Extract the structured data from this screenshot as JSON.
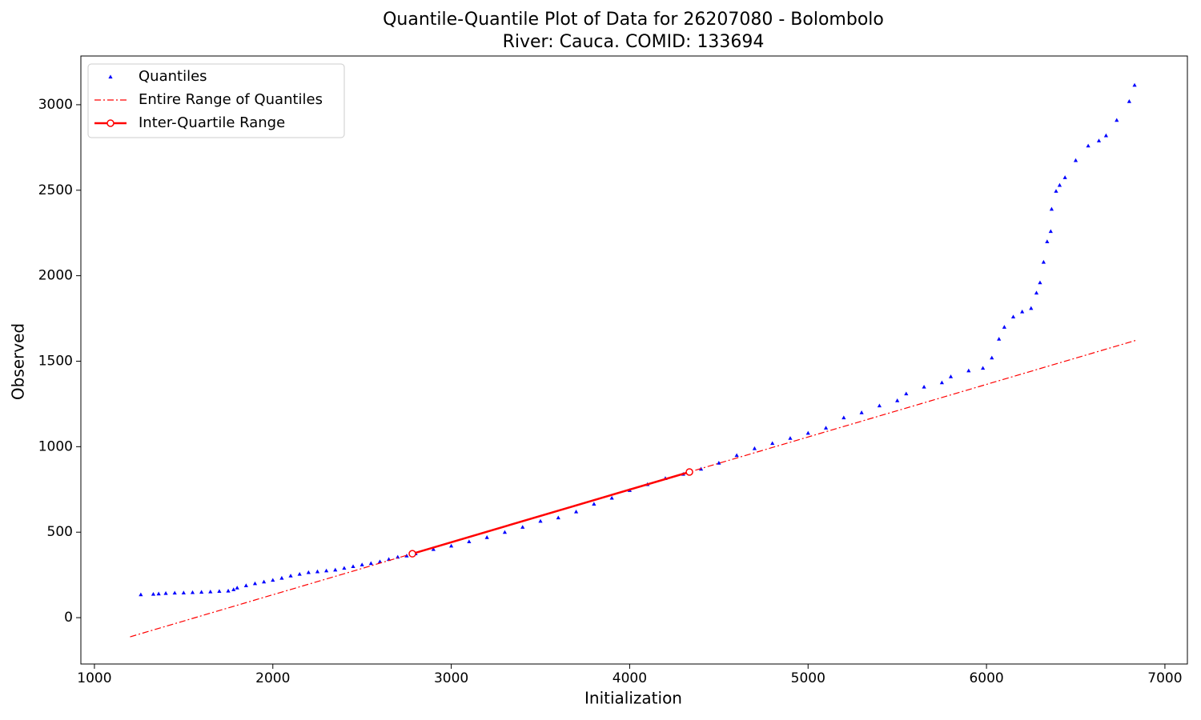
{
  "chart_data": {
    "type": "scatter",
    "title": "Quantile-Quantile Plot of Data for 26207080 - Bolombolo",
    "subtitle": "River: Cauca. COMID: 133694",
    "x_label": "Initialization",
    "y_label": "Observed",
    "xlim": [
      924,
      7126
    ],
    "ylim": [
      -271,
      3285
    ],
    "xticks": [
      1000,
      2000,
      3000,
      4000,
      5000,
      6000,
      7000
    ],
    "yticks": [
      0,
      500,
      1000,
      1500,
      2000,
      2500,
      3000
    ],
    "grid": false,
    "legend": "upper left",
    "series": [
      {
        "name": "Quantiles",
        "color": "#0000ff",
        "style": "marker",
        "x": [
          1260,
          1330,
          1360,
          1400,
          1450,
          1500,
          1550,
          1600,
          1650,
          1700,
          1750,
          1780,
          1800,
          1850,
          1900,
          1950,
          2000,
          2050,
          2100,
          2150,
          2200,
          2250,
          2300,
          2350,
          2400,
          2450,
          2500,
          2550,
          2600,
          2650,
          2700,
          2750,
          2800,
          2900,
          3000,
          3100,
          3200,
          3300,
          3400,
          3500,
          3600,
          3700,
          3800,
          3900,
          4000,
          4100,
          4200,
          4300,
          4400,
          4500,
          4600,
          4700,
          4800,
          4900,
          5000,
          5100,
          5200,
          5300,
          5400,
          5500,
          5550,
          5650,
          5750,
          5800,
          5900,
          5980,
          6030,
          6070,
          6100,
          6150,
          6200,
          6250,
          6280,
          6300,
          6320,
          6340,
          6360,
          6365,
          6390,
          6410,
          6440,
          6500,
          6570,
          6630,
          6670,
          6730,
          6800,
          6830
        ],
        "values": [
          135,
          138,
          140,
          143,
          145,
          146,
          148,
          150,
          152,
          155,
          157,
          165,
          175,
          188,
          200,
          210,
          220,
          232,
          245,
          255,
          265,
          270,
          275,
          280,
          290,
          300,
          310,
          318,
          328,
          342,
          355,
          362,
          375,
          400,
          420,
          445,
          470,
          500,
          530,
          565,
          585,
          620,
          665,
          700,
          745,
          780,
          815,
          840,
          870,
          905,
          950,
          990,
          1020,
          1050,
          1080,
          1110,
          1170,
          1200,
          1240,
          1270,
          1310,
          1350,
          1375,
          1410,
          1445,
          1460,
          1520,
          1630,
          1700,
          1760,
          1790,
          1810,
          1900,
          1960,
          2080,
          2200,
          2260,
          2390,
          2495,
          2530,
          2575,
          2675,
          2760,
          2790,
          2820,
          2910,
          3020,
          3115
        ]
      },
      {
        "name": "Entire Range of Quantiles",
        "color": "#ff0000",
        "style": "dashdot",
        "x": [
          1200,
          6844
        ],
        "values": [
          -112,
          1624
        ]
      },
      {
        "name": "Inter-Quartile Range",
        "color": "#ff0000",
        "style": "line-marker",
        "x": [
          2782,
          4335
        ],
        "values": [
          374,
          852
        ]
      }
    ]
  }
}
